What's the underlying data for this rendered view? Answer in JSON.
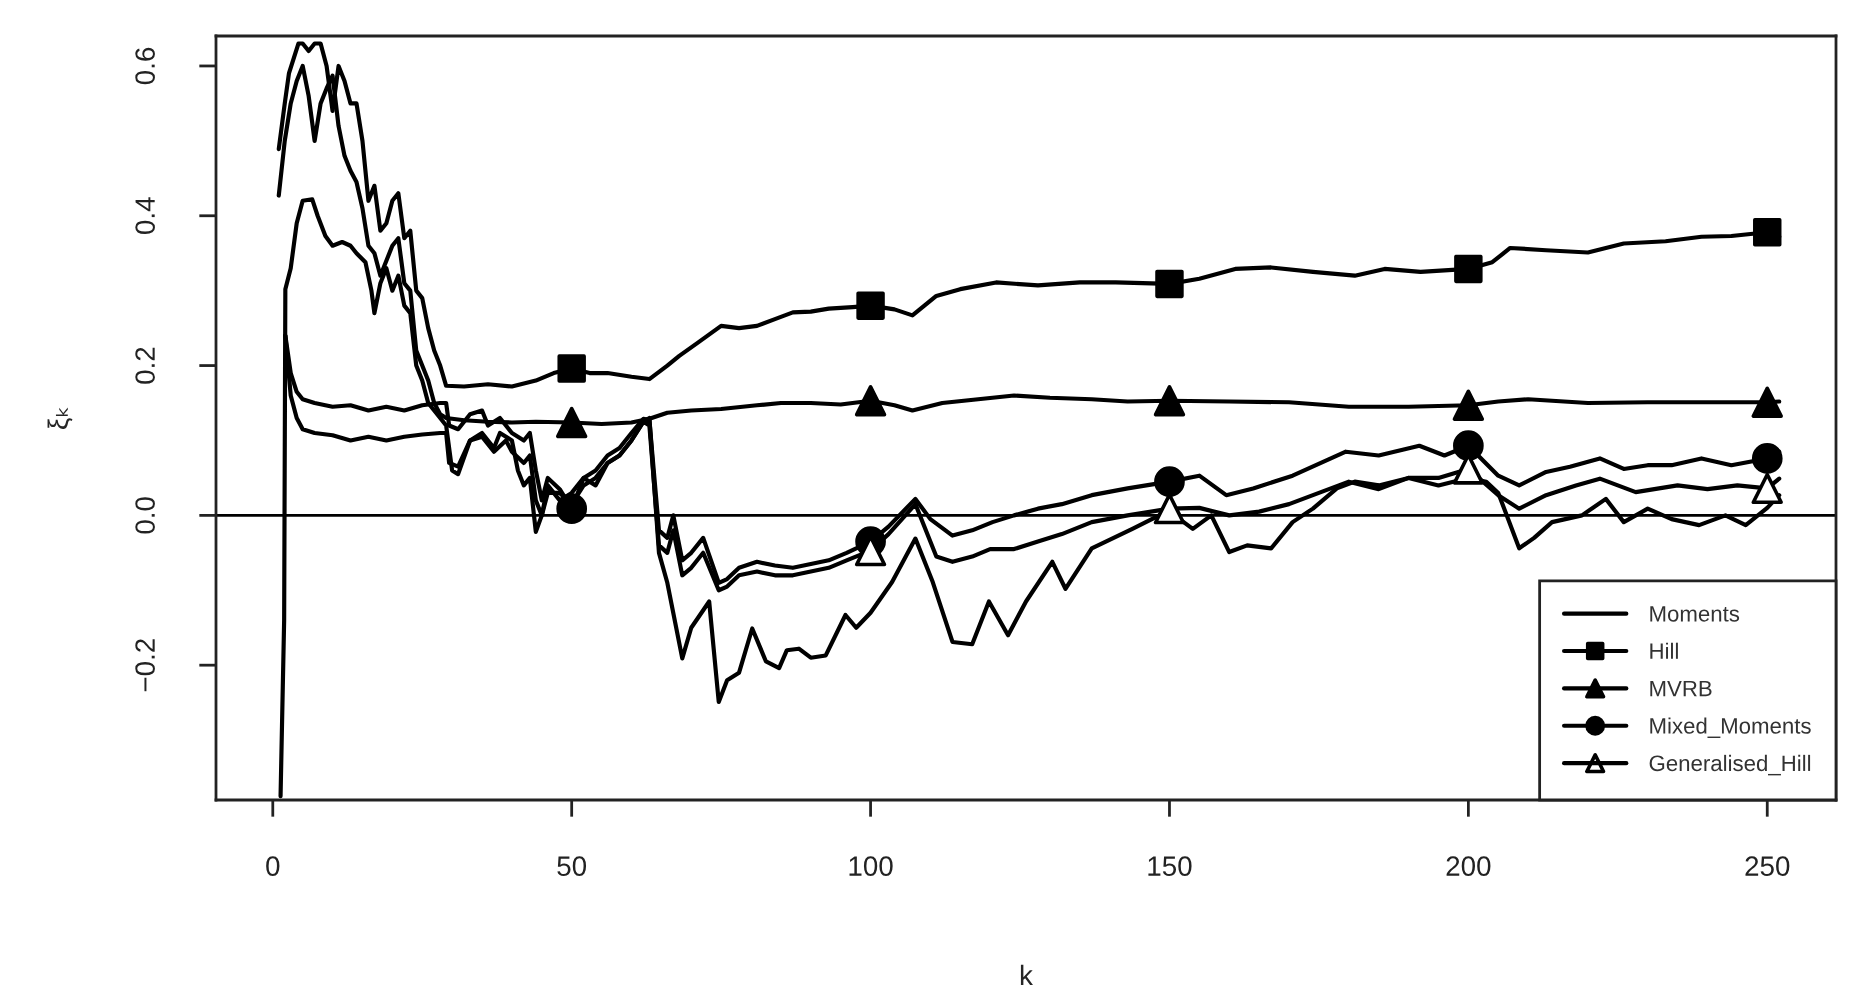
{
  "chart_data": {
    "type": "line",
    "xlabel": "k",
    "ylabel": "ξₖ",
    "xlim": [
      -9.5,
      261.5
    ],
    "ylim": [
      -0.38,
      0.64
    ],
    "xticks": [
      0,
      50,
      100,
      150,
      200,
      250
    ],
    "yticks": [
      {
        "value": -0.2,
        "label": "−0.2"
      },
      {
        "value": 0,
        "label": "0.0"
      },
      0.2,
      0.4,
      0.6
    ],
    "legend": "bottom right",
    "line_style": "solid",
    "ref_lines": [
      {
        "axis": "y",
        "value": 0,
        "color": "#000000"
      }
    ],
    "series": [
      {
        "name": "Moments",
        "color": "#000000",
        "x": [
          1.3,
          1.9,
          2.1,
          3,
          4,
          5,
          6.6,
          7.5,
          8.8,
          10,
          11.6,
          13,
          14,
          15.5,
          16.5,
          17,
          18,
          19,
          20,
          21,
          22,
          23,
          24,
          25,
          26,
          27,
          28,
          29,
          30,
          31,
          33,
          35,
          37,
          38,
          40,
          41,
          42,
          43,
          44,
          45,
          46,
          48,
          50,
          52,
          54,
          56,
          58,
          60,
          62,
          63,
          64.6,
          66,
          68.5,
          70,
          73,
          74.6,
          76,
          78,
          80.2,
          82.5,
          84.7,
          86,
          88,
          90,
          92.5,
          95.8,
          97.6,
          100,
          103.6,
          107.5,
          110.4,
          113.7,
          117,
          119.8,
          123,
          126,
          130.4,
          132.6,
          137,
          143.8,
          148.3,
          150,
          153.9,
          157,
          160,
          163,
          167,
          170.6,
          174,
          178,
          181,
          185,
          190,
          195,
          200,
          203,
          205,
          208.5,
          211,
          214,
          219,
          223,
          226,
          230,
          234,
          238.6,
          243,
          246.4,
          250,
          252
        ],
        "values": [
          -0.375,
          -0.14,
          0.302,
          0.33,
          0.39,
          0.42,
          0.422,
          0.4,
          0.373,
          0.36,
          0.365,
          0.36,
          0.35,
          0.338,
          0.3,
          0.27,
          0.31,
          0.33,
          0.3,
          0.32,
          0.28,
          0.27,
          0.2,
          0.18,
          0.15,
          0.14,
          0.13,
          0.12,
          0.06,
          0.055,
          0.1,
          0.11,
          0.09,
          0.11,
          0.1,
          0.06,
          0.04,
          0.05,
          -0.022,
          0.0,
          0.04,
          0.02,
          0.03,
          0.05,
          0.04,
          0.07,
          0.08,
          0.1,
          0.125,
          0.13,
          -0.05,
          -0.09,
          -0.191,
          -0.15,
          -0.115,
          -0.249,
          -0.22,
          -0.21,
          -0.151,
          -0.195,
          -0.204,
          -0.18,
          -0.178,
          -0.19,
          -0.187,
          -0.133,
          -0.15,
          -0.13,
          -0.089,
          -0.031,
          -0.089,
          -0.169,
          -0.172,
          -0.115,
          -0.16,
          -0.115,
          -0.062,
          -0.098,
          -0.044,
          -0.018,
          0.0,
          0.005,
          -0.018,
          0.0,
          -0.049,
          -0.04,
          -0.044,
          -0.009,
          0.009,
          0.036,
          0.045,
          0.04,
          0.05,
          0.04,
          0.05,
          0.045,
          0.03,
          -0.044,
          -0.03,
          -0.009,
          0.0,
          0.022,
          -0.009,
          0.009,
          -0.005,
          -0.013,
          0.0,
          -0.013,
          0.01,
          0.027
        ]
      },
      {
        "color": "#000000",
        "x": [
          1,
          2,
          2.7,
          4.3,
          5,
          6,
          7,
          8,
          9,
          10,
          11,
          12,
          13,
          14,
          15,
          16,
          17,
          18,
          19,
          20,
          21,
          22,
          23,
          24,
          25,
          26,
          27,
          28,
          29,
          32,
          36,
          40,
          44,
          47,
          50,
          53,
          56,
          60,
          63,
          66,
          68,
          71,
          75,
          78,
          81,
          84,
          87,
          90,
          93,
          97,
          100,
          104,
          107,
          109,
          111,
          115,
          121,
          128,
          135,
          141,
          150,
          155,
          161,
          167,
          174,
          181,
          186,
          192,
          200,
          204,
          207,
          213,
          220,
          226,
          233,
          239,
          244,
          250,
          252
        ],
        "values": [
          0.489,
          0.55,
          0.59,
          0.63,
          0.63,
          0.62,
          0.63,
          0.63,
          0.6,
          0.54,
          0.6,
          0.58,
          0.55,
          0.55,
          0.5,
          0.42,
          0.44,
          0.38,
          0.39,
          0.42,
          0.43,
          0.37,
          0.38,
          0.3,
          0.29,
          0.25,
          0.22,
          0.2,
          0.173,
          0.172,
          0.175,
          0.172,
          0.18,
          0.19,
          0.196,
          0.19,
          0.19,
          0.185,
          0.182,
          0.2,
          0.213,
          0.23,
          0.253,
          0.25,
          0.253,
          0.262,
          0.271,
          0.272,
          0.276,
          0.278,
          0.28,
          0.275,
          0.267,
          0.28,
          0.293,
          0.302,
          0.311,
          0.307,
          0.311,
          0.311,
          0.309,
          0.316,
          0.329,
          0.331,
          0.325,
          0.32,
          0.329,
          0.325,
          0.329,
          0.338,
          0.357,
          0.354,
          0.351,
          0.363,
          0.366,
          0.372,
          0.373,
          0.378,
          0.372
        ]
      },
      {
        "name": "Hill",
        "type": "scatter",
        "marker": "square",
        "color": "#000000",
        "x": [
          50,
          100,
          150,
          200,
          250
        ],
        "values": [
          0.196,
          0.28,
          0.309,
          0.329,
          0.378
        ]
      },
      {
        "color": "#000000",
        "x": [
          1,
          2,
          3,
          4,
          5,
          6,
          7,
          8,
          9,
          10,
          11,
          12,
          13,
          14,
          15,
          16,
          17,
          18,
          19,
          20,
          21,
          22,
          23,
          24,
          25,
          26,
          27,
          28,
          29,
          32,
          36,
          40,
          44,
          50,
          55,
          60,
          63,
          66,
          70,
          75,
          81,
          85,
          90,
          95,
          100,
          104,
          107,
          112,
          118,
          124,
          130,
          137,
          143,
          150,
          160,
          170,
          180,
          190,
          200,
          205,
          210,
          220,
          230,
          240,
          250,
          252
        ],
        "values": [
          0.427,
          0.5,
          0.55,
          0.58,
          0.6,
          0.56,
          0.5,
          0.55,
          0.57,
          0.587,
          0.52,
          0.48,
          0.46,
          0.445,
          0.41,
          0.36,
          0.35,
          0.32,
          0.34,
          0.36,
          0.37,
          0.31,
          0.3,
          0.22,
          0.2,
          0.18,
          0.15,
          0.135,
          0.13,
          0.127,
          0.125,
          0.124,
          0.125,
          0.124,
          0.122,
          0.124,
          0.129,
          0.137,
          0.14,
          0.142,
          0.147,
          0.15,
          0.15,
          0.148,
          0.153,
          0.147,
          0.14,
          0.15,
          0.155,
          0.16,
          0.157,
          0.155,
          0.152,
          0.153,
          0.152,
          0.151,
          0.145,
          0.145,
          0.147,
          0.152,
          0.155,
          0.15,
          0.151,
          0.151,
          0.151,
          0.152
        ]
      },
      {
        "name": "MVRB",
        "type": "scatter",
        "marker": "triangle",
        "color": "#000000",
        "x": [
          50,
          100,
          150,
          200,
          250
        ],
        "values": [
          0.124,
          0.153,
          0.153,
          0.147,
          0.151
        ]
      },
      {
        "color": "#000000",
        "x": [
          2.1,
          3,
          4,
          5,
          7,
          10,
          13,
          16,
          19,
          22,
          25,
          28,
          29,
          29.5,
          31,
          33,
          35,
          36,
          38,
          40,
          42,
          43,
          44,
          45,
          46,
          48,
          50,
          52,
          54,
          56,
          58,
          60,
          62,
          63,
          64.6,
          66,
          67,
          68.5,
          70,
          72,
          74.6,
          76,
          78,
          81,
          84,
          87,
          90,
          93,
          96,
          100,
          103,
          107.5,
          110,
          113.7,
          117,
          120.4,
          124,
          128,
          132,
          137,
          143,
          150,
          155,
          159.5,
          164,
          170.6,
          177,
          179.5,
          185,
          191.8,
          196,
          200,
          205,
          208.5,
          213,
          217,
          222,
          226,
          230,
          234,
          239,
          244,
          250,
          252
        ],
        "values": [
          0.24,
          0.19,
          0.165,
          0.155,
          0.15,
          0.145,
          0.147,
          0.14,
          0.145,
          0.14,
          0.147,
          0.15,
          0.15,
          0.12,
          0.115,
          0.135,
          0.14,
          0.12,
          0.13,
          0.11,
          0.1,
          0.11,
          0.06,
          0.02,
          0.05,
          0.035,
          0.009,
          0.05,
          0.06,
          0.08,
          0.09,
          0.11,
          0.129,
          0.127,
          -0.02,
          -0.03,
          0.0,
          -0.06,
          -0.05,
          -0.03,
          -0.09,
          -0.085,
          -0.07,
          -0.062,
          -0.067,
          -0.07,
          -0.065,
          -0.06,
          -0.05,
          -0.035,
          -0.015,
          0.022,
          -0.005,
          -0.027,
          -0.02,
          -0.009,
          0.0,
          0.009,
          0.015,
          0.027,
          0.036,
          0.045,
          0.053,
          0.027,
          0.036,
          0.053,
          0.076,
          0.085,
          0.08,
          0.093,
          0.08,
          0.093,
          0.053,
          0.04,
          0.058,
          0.065,
          0.076,
          0.062,
          0.067,
          0.067,
          0.076,
          0.067,
          0.076,
          0.085
        ]
      },
      {
        "name": "Mixed_Moments",
        "type": "scatter",
        "marker": "circle",
        "color": "#000000",
        "x": [
          50,
          100,
          150,
          200,
          250
        ],
        "values": [
          0.009,
          -0.035,
          0.045,
          0.093,
          0.076
        ]
      },
      {
        "color": "#000000",
        "x": [
          2.1,
          3,
          4,
          5,
          7,
          10,
          13,
          16,
          19,
          22,
          25,
          28,
          29,
          29.5,
          31,
          33,
          35,
          37,
          39,
          40,
          42,
          43,
          44,
          45,
          46,
          48,
          50,
          52,
          54,
          56,
          58,
          60,
          62,
          63,
          64.6,
          66,
          67,
          68.5,
          70,
          72,
          74.6,
          76,
          78,
          81,
          84,
          87,
          90,
          93,
          96,
          100,
          103,
          107.5,
          111,
          113.7,
          117,
          120,
          124,
          128,
          132,
          137,
          143,
          150,
          155,
          160,
          165,
          170,
          175,
          180,
          185,
          190,
          195,
          200,
          205,
          208.5,
          213,
          218,
          222,
          228,
          235,
          240,
          245,
          250,
          252
        ],
        "values": [
          0.24,
          0.16,
          0.13,
          0.115,
          0.11,
          0.107,
          0.1,
          0.105,
          0.1,
          0.105,
          0.108,
          0.11,
          0.11,
          0.07,
          0.065,
          0.1,
          0.105,
          0.085,
          0.1,
          0.085,
          0.07,
          0.08,
          0.02,
          0.0,
          0.03,
          0.03,
          0.015,
          0.04,
          0.05,
          0.07,
          0.08,
          0.1,
          0.125,
          0.12,
          -0.04,
          -0.05,
          -0.02,
          -0.08,
          -0.07,
          -0.05,
          -0.1,
          -0.095,
          -0.08,
          -0.075,
          -0.08,
          -0.08,
          -0.075,
          -0.07,
          -0.06,
          -0.047,
          -0.025,
          0.015,
          -0.055,
          -0.062,
          -0.055,
          -0.045,
          -0.045,
          -0.035,
          -0.025,
          -0.009,
          0.0,
          0.009,
          0.01,
          0.0,
          0.005,
          0.015,
          0.03,
          0.045,
          0.035,
          0.05,
          0.05,
          0.062,
          0.027,
          0.009,
          0.027,
          0.04,
          0.049,
          0.031,
          0.04,
          0.035,
          0.04,
          0.036,
          0.049
        ]
      },
      {
        "name": "Generalised_Hill",
        "type": "scatter",
        "marker": "triangle",
        "color": "#ffffff",
        "x": [
          100,
          150,
          200,
          250
        ],
        "values": [
          -0.047,
          0.009,
          0.062,
          0.036
        ]
      }
    ]
  }
}
